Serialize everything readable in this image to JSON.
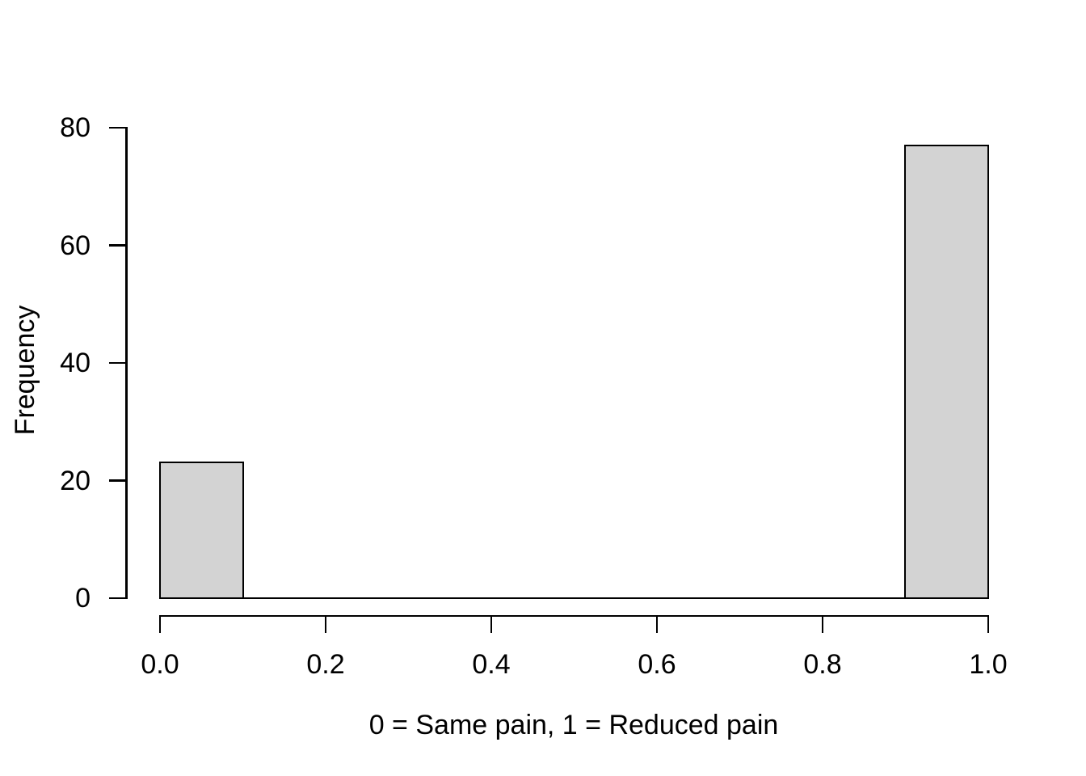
{
  "chart_data": {
    "type": "bar",
    "subtype": "histogram",
    "title": "",
    "xlabel": "0 = Same pain, 1 = Reduced pain",
    "ylabel": "Frequency",
    "xlim": [
      0,
      1
    ],
    "ylim": [
      0,
      80
    ],
    "x_ticks": [
      {
        "value": 0.0,
        "label": "0.0"
      },
      {
        "value": 0.2,
        "label": "0.2"
      },
      {
        "value": 0.4,
        "label": "0.4"
      },
      {
        "value": 0.6,
        "label": "0.6"
      },
      {
        "value": 0.8,
        "label": "0.8"
      },
      {
        "value": 1.0,
        "label": "1.0"
      }
    ],
    "y_ticks": [
      {
        "value": 0,
        "label": "0"
      },
      {
        "value": 20,
        "label": "20"
      },
      {
        "value": 40,
        "label": "40"
      },
      {
        "value": 60,
        "label": "60"
      },
      {
        "value": 80,
        "label": "80"
      }
    ],
    "bins": [
      {
        "x0": 0.0,
        "x1": 0.1,
        "count": 23
      },
      {
        "x0": 0.9,
        "x1": 1.0,
        "count": 77
      }
    ],
    "baseline": {
      "from": 0.0,
      "to": 1.0,
      "at": 0
    },
    "grid": false,
    "legend": false,
    "colors": {
      "bar_fill": "#d3d3d3",
      "bar_border": "#000000",
      "axis": "#000000",
      "text": "#000000",
      "background": "#ffffff"
    }
  }
}
